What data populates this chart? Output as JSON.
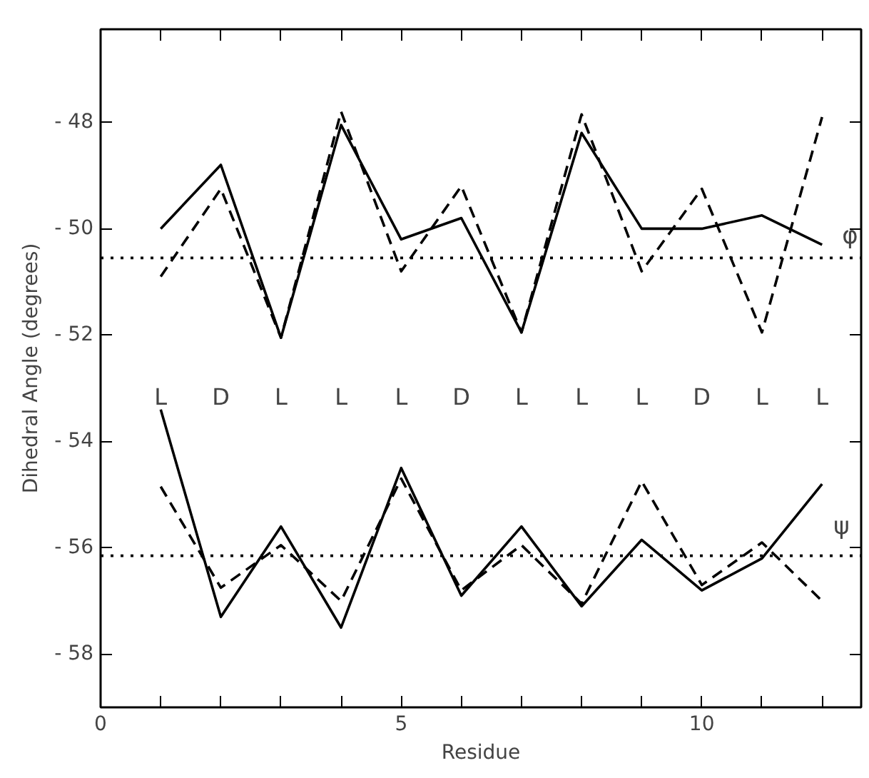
{
  "chart_data": {
    "type": "line",
    "xlabel": "Residue",
    "ylabel": "Dihedral Angle (degrees)",
    "x": [
      1,
      2,
      3,
      4,
      5,
      6,
      7,
      8,
      9,
      10,
      11,
      12
    ],
    "xlim": [
      0,
      12.65
    ],
    "ylim": [
      -59,
      -46.25
    ],
    "xticks": [
      0,
      {
        "value": 1,
        "label": null
      },
      {
        "value": 2,
        "label": null
      },
      {
        "value": 3,
        "label": null
      },
      {
        "value": 4,
        "label": null
      },
      5,
      {
        "value": 6,
        "label": null
      },
      {
        "value": 7,
        "label": null
      },
      {
        "value": 8,
        "label": null
      },
      {
        "value": 9,
        "label": null
      },
      10,
      {
        "value": 11,
        "label": null
      },
      {
        "value": 12,
        "label": null
      }
    ],
    "yticks": [
      -58,
      -56,
      -54,
      -52,
      -50,
      -48
    ],
    "grid": false,
    "marker": "none",
    "series": [
      {
        "color": "#000000",
        "line_style": "solid",
        "values": [
          -50.0,
          -48.8,
          -52.05,
          -48.05,
          -50.2,
          -49.8,
          -51.95,
          -48.2,
          -50.0,
          -50.0,
          -49.75,
          -50.3
        ]
      },
      {
        "color": "#000000",
        "line_style": "dashed",
        "values": [
          -50.9,
          -49.25,
          -52.05,
          -47.8,
          -50.8,
          -49.2,
          -51.95,
          -47.85,
          -50.8,
          -49.25,
          -51.95,
          -47.9
        ]
      },
      {
        "color": "#000000",
        "line_style": "solid",
        "values": [
          -53.4,
          -57.3,
          -55.6,
          -57.5,
          -54.5,
          -56.9,
          -55.6,
          -57.1,
          -55.85,
          -56.8,
          -56.2,
          -54.8
        ]
      },
      {
        "color": "#000000",
        "line_style": "dashed",
        "values": [
          -54.85,
          -56.75,
          -55.95,
          -57.0,
          -54.7,
          -56.8,
          -55.95,
          -57.05,
          -54.75,
          -56.7,
          -55.9,
          -57.0
        ]
      }
    ],
    "ref_lines": [
      {
        "axis": "y",
        "value": -50.55,
        "color": "#000000",
        "line_style": "dotted"
      },
      {
        "axis": "y",
        "value": -56.15,
        "color": "#000000",
        "line_style": "dotted"
      }
    ],
    "annotations": [
      "φ",
      "ψ",
      "L",
      "D",
      "L",
      "L",
      "L",
      "D",
      "L",
      "L",
      "L",
      "D",
      "L",
      "L"
    ]
  }
}
